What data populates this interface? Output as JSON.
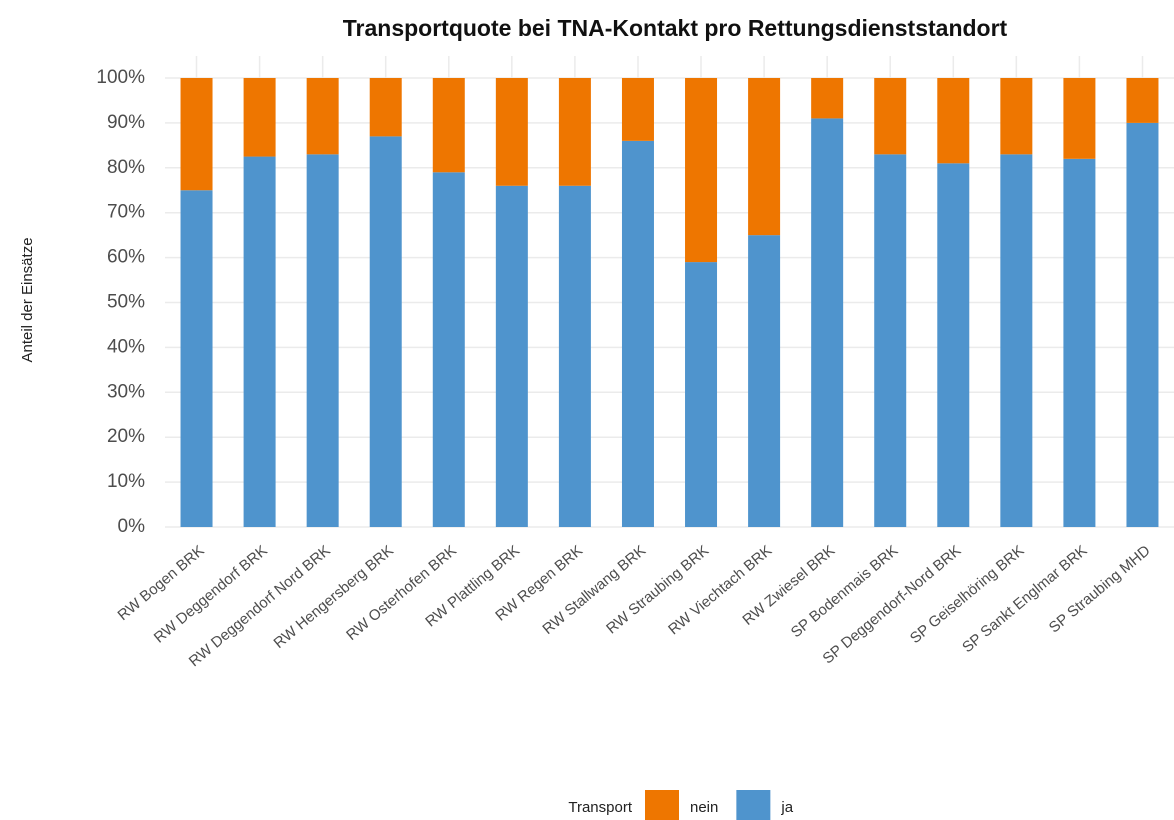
{
  "chart_data": {
    "type": "bar",
    "stacked": true,
    "title": "Transportquote bei TNA-Kontakt pro Rettungsdienststandort",
    "ylabel": "Anteil der Einsätze",
    "legend_title": "Transport",
    "categories": [
      "RW Bogen BRK",
      "RW Deggendorf BRK",
      "RW Deggendorf Nord  BRK",
      "RW Hengersberg BRK",
      "RW Osterhofen BRK",
      "RW Plattling BRK",
      "RW Regen BRK",
      "RW Stallwang BRK",
      "RW Straubing BRK",
      "RW Viechtach BRK",
      "RW Zwiesel BRK",
      "SP Bodenmais BRK",
      "SP Deggendorf-Nord BRK",
      "SP Geiselhöring BRK",
      "SP Sankt Englmar BRK",
      "SP Straubing MHD"
    ],
    "series": [
      {
        "name": "nein",
        "color": "#ee7600",
        "values": [
          25,
          17.5,
          17,
          13,
          21,
          24,
          24,
          14,
          41,
          35,
          9,
          17,
          19,
          17,
          18,
          10
        ]
      },
      {
        "name": "ja",
        "color": "#4f94cd",
        "values": [
          75,
          82.5,
          83,
          87,
          79,
          76,
          76,
          86,
          59,
          65,
          91,
          83,
          81,
          83,
          82,
          90
        ]
      }
    ],
    "ylim": [
      0,
      100
    ],
    "yticks": [
      {
        "value": 0,
        "label": "0%"
      },
      {
        "value": 10,
        "label": "10%"
      },
      {
        "value": 20,
        "label": "20%"
      },
      {
        "value": 30,
        "label": "30%"
      },
      {
        "value": 40,
        "label": "40%"
      },
      {
        "value": 50,
        "label": "50%"
      },
      {
        "value": 60,
        "label": "60%"
      },
      {
        "value": 70,
        "label": "70%"
      },
      {
        "value": 80,
        "label": "80%"
      },
      {
        "value": 90,
        "label": "90%"
      },
      {
        "value": 100,
        "label": "100%"
      }
    ],
    "grid": true
  }
}
